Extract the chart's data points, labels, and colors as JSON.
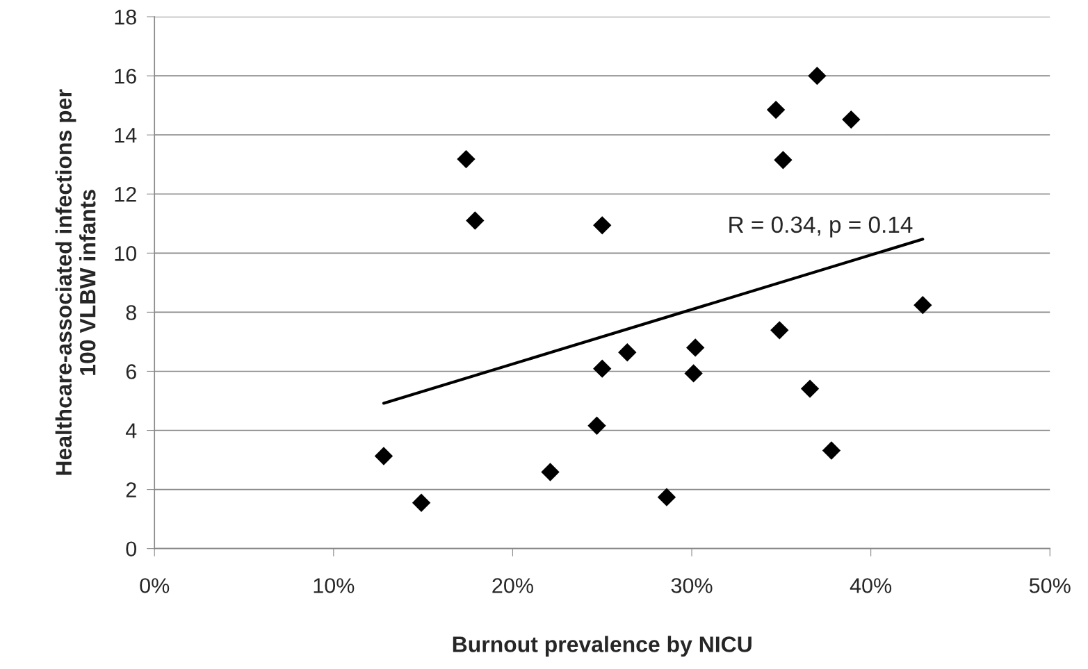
{
  "chart_data": {
    "type": "scatter",
    "xlabel": "Burnout prevalence by NICU",
    "ylabel": "Healthcare-associated infections per\n100 VLBW infants",
    "series": [
      {
        "color": "#000000",
        "marker": "diamond",
        "x": [
          12.8,
          14.9,
          17.4,
          17.9,
          22.1,
          25.0,
          24.7,
          25.0,
          26.4,
          28.6,
          30.1,
          30.2,
          34.7,
          35.1,
          34.9,
          37.0,
          36.6,
          38.9,
          37.8,
          42.9
        ],
        "values": [
          3.13,
          1.55,
          13.18,
          11.1,
          2.59,
          10.94,
          4.16,
          6.09,
          6.64,
          1.74,
          5.93,
          6.8,
          14.85,
          13.15,
          7.39,
          16.0,
          5.41,
          14.52,
          3.32,
          8.24
        ]
      },
      {
        "type": "line",
        "color": "#000000",
        "marker": "none",
        "x": [
          12.8,
          42.9
        ],
        "values": [
          4.92,
          10.47
        ]
      }
    ],
    "annotations": [
      "R = 0.34, p = 0.14"
    ],
    "xlim": [
      0,
      50
    ],
    "xticks": [
      {
        "value": 0,
        "label": "0%"
      },
      {
        "value": 10,
        "label": "10%"
      },
      {
        "value": 20,
        "label": "20%"
      },
      {
        "value": 30,
        "label": "30%"
      },
      {
        "value": 40,
        "label": "40%"
      },
      {
        "value": 50,
        "label": "50%"
      }
    ],
    "ylim": [
      0,
      18
    ],
    "yticks": [
      0,
      2,
      4,
      6,
      8,
      10,
      12,
      14,
      16,
      18
    ],
    "grid": "y",
    "legend": false
  }
}
